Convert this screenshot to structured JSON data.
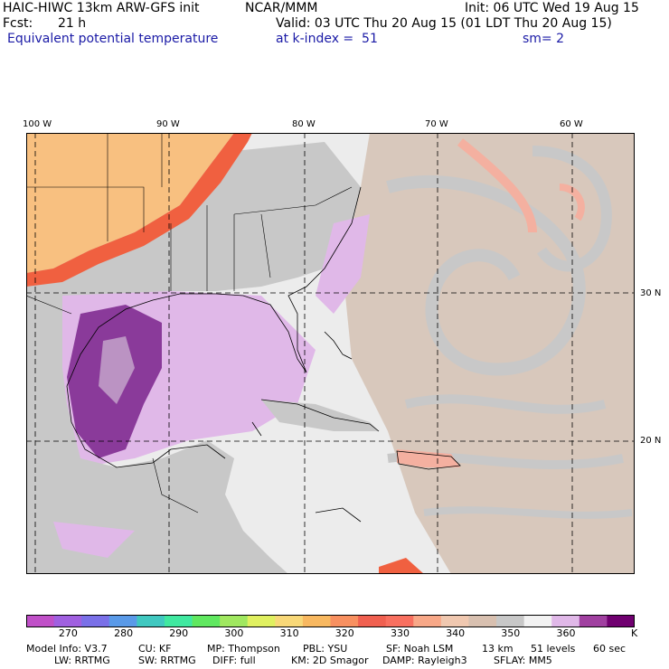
{
  "header": {
    "model": "HAIC-HIWC 13km ARW-GFS init",
    "org": "NCAR/MMM",
    "init": "Init: 06 UTC Wed 19 Aug 15",
    "fcst_label": "Fcst:",
    "fcst_value": "21 h",
    "valid": "Valid: 03 UTC Thu 20 Aug 15 (01 LDT Thu 20 Aug 15)",
    "field": "Equivalent potential temperature",
    "level": "at k-index =  51",
    "smooth": "sm= 2"
  },
  "axes": {
    "lon_labels": [
      "100 W",
      "90 W",
      "80 W",
      "70 W",
      "60 W"
    ],
    "lat_labels": [
      "30 N",
      "20 N"
    ]
  },
  "colorbar": {
    "tick_labels": [
      "270",
      "280",
      "290",
      "300",
      "310",
      "320",
      "330",
      "340",
      "350",
      "360"
    ],
    "unit": "K",
    "colors": [
      "#c050c8",
      "#a060e0",
      "#7a70e8",
      "#5a9ae8",
      "#40c8c0",
      "#40e8a0",
      "#60e860",
      "#a0e860",
      "#e0f060",
      "#f8d878",
      "#f8b860",
      "#f89060",
      "#f06050",
      "#f87060",
      "#f8a888",
      "#f0c8b0",
      "#d8c0b0",
      "#c8c8c8",
      "#f2f2f2",
      "#e0b8e8",
      "#a040a0",
      "#700070"
    ]
  },
  "footer": {
    "line1": [
      "Model Info: V3.7",
      "CU: KF",
      "MP: Thompson",
      "PBL: YSU",
      "SF: Noah LSM",
      "13 km",
      "51 levels",
      "60 sec"
    ],
    "line2": [
      "LW: RRTMG",
      "SW: RRTMG",
      "DIFF: full",
      "KM: 2D Smagor",
      "DAMP: Rayleigh3",
      "SFLAY: MM5"
    ]
  },
  "map_colors": {
    "land_gray": "#c8c8c8",
    "ocean_light": "#ececec",
    "tan": "#d8c8bc",
    "orange": "#f8c080",
    "red_orange": "#f06040",
    "purple_dark": "#8a3a9a",
    "lavender": "#e0b8e8",
    "salmon": "#f4b0a0"
  }
}
